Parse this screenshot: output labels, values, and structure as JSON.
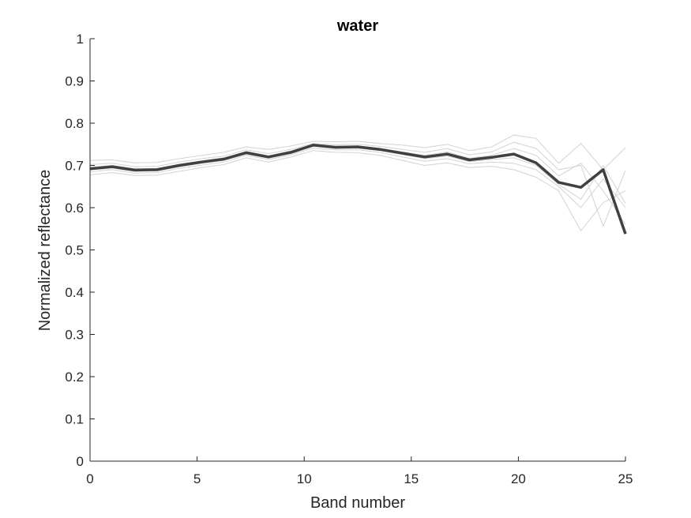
{
  "chart_data": {
    "type": "line",
    "title": "water",
    "xlabel": "Band number",
    "ylabel": "Normalized reflectance",
    "xlim": [
      0,
      25
    ],
    "ylim": [
      0,
      1
    ],
    "xticks": [
      "0",
      "5",
      "10",
      "15",
      "20",
      "25"
    ],
    "yticks": [
      "0",
      "0.1",
      "0.2",
      "0.3",
      "0.4",
      "0.5",
      "0.6",
      "0.7",
      "0.8",
      "0.9",
      "1"
    ],
    "grid": false,
    "legend": "none",
    "colors": {
      "mean": "#404040",
      "samples": "#d3d3d3",
      "axis": "#262626"
    },
    "series": [
      {
        "role": "mean",
        "x": [
          0,
          1.04,
          2.08,
          3.13,
          4.17,
          5.21,
          6.25,
          7.29,
          8.33,
          9.38,
          10.42,
          11.46,
          12.5,
          13.54,
          14.58,
          15.63,
          16.67,
          17.71,
          18.75,
          19.79,
          20.83,
          21.88,
          22.92,
          23.96,
          25
        ],
        "y": [
          0.692,
          0.697,
          0.689,
          0.69,
          0.7,
          0.708,
          0.715,
          0.73,
          0.72,
          0.731,
          0.748,
          0.743,
          0.744,
          0.738,
          0.729,
          0.72,
          0.727,
          0.713,
          0.719,
          0.727,
          0.706,
          0.66,
          0.648,
          0.69,
          0.538
        ]
      },
      {
        "role": "sample",
        "x": [
          0,
          1.04,
          2.08,
          3.13,
          4.17,
          5.21,
          6.25,
          7.29,
          8.33,
          9.38,
          10.42,
          11.46,
          12.5,
          13.54,
          14.58,
          15.63,
          16.67,
          17.71,
          18.75,
          19.79,
          20.83,
          21.88,
          22.92,
          23.96,
          25
        ],
        "y": [
          0.712,
          0.713,
          0.706,
          0.707,
          0.716,
          0.724,
          0.731,
          0.744,
          0.738,
          0.746,
          0.757,
          0.756,
          0.757,
          0.752,
          0.748,
          0.742,
          0.75,
          0.735,
          0.744,
          0.772,
          0.764,
          0.705,
          0.752,
          0.69,
          0.742
        ]
      },
      {
        "role": "sample",
        "x": [
          0,
          1.04,
          2.08,
          3.13,
          4.17,
          5.21,
          6.25,
          7.29,
          8.33,
          9.38,
          10.42,
          11.46,
          12.5,
          13.54,
          14.58,
          15.63,
          16.67,
          17.71,
          18.75,
          19.79,
          20.83,
          21.88,
          22.92,
          23.96,
          25
        ],
        "y": [
          0.678,
          0.683,
          0.676,
          0.677,
          0.686,
          0.695,
          0.702,
          0.718,
          0.708,
          0.72,
          0.735,
          0.731,
          0.73,
          0.724,
          0.712,
          0.7,
          0.706,
          0.695,
          0.698,
          0.69,
          0.672,
          0.64,
          0.545,
          0.612,
          0.64
        ]
      },
      {
        "role": "sample",
        "x": [
          0,
          1.04,
          2.08,
          3.13,
          4.17,
          5.21,
          6.25,
          7.29,
          8.33,
          9.38,
          10.42,
          11.46,
          12.5,
          13.54,
          14.58,
          15.63,
          16.67,
          17.71,
          18.75,
          19.79,
          20.83,
          21.88,
          22.92,
          23.96,
          25
        ],
        "y": [
          0.702,
          0.705,
          0.697,
          0.698,
          0.708,
          0.716,
          0.722,
          0.737,
          0.728,
          0.738,
          0.752,
          0.749,
          0.75,
          0.745,
          0.738,
          0.731,
          0.74,
          0.725,
          0.732,
          0.755,
          0.74,
          0.69,
          0.7,
          0.556,
          0.688
        ]
      },
      {
        "role": "sample",
        "x": [
          0,
          1.04,
          2.08,
          3.13,
          4.17,
          5.21,
          6.25,
          7.29,
          8.33,
          9.38,
          10.42,
          11.46,
          12.5,
          13.54,
          14.58,
          15.63,
          16.67,
          17.71,
          18.75,
          19.79,
          20.83,
          21.88,
          22.92,
          23.96,
          25
        ],
        "y": [
          0.685,
          0.69,
          0.682,
          0.683,
          0.693,
          0.701,
          0.708,
          0.724,
          0.714,
          0.725,
          0.741,
          0.737,
          0.737,
          0.731,
          0.72,
          0.71,
          0.716,
          0.704,
          0.708,
          0.705,
          0.69,
          0.65,
          0.6,
          0.668,
          0.6
        ]
      },
      {
        "role": "sample",
        "x": [
          0,
          1.04,
          2.08,
          3.13,
          4.17,
          5.21,
          6.25,
          7.29,
          8.33,
          9.38,
          10.42,
          11.46,
          12.5,
          13.54,
          14.58,
          15.63,
          16.67,
          17.71,
          18.75,
          19.79,
          20.83,
          21.88,
          22.92,
          23.96,
          25
        ],
        "y": [
          0.696,
          0.7,
          0.692,
          0.693,
          0.703,
          0.711,
          0.718,
          0.733,
          0.723,
          0.734,
          0.75,
          0.745,
          0.746,
          0.74,
          0.732,
          0.724,
          0.732,
          0.717,
          0.724,
          0.74,
          0.724,
          0.675,
          0.705,
          0.64,
          0.56
        ]
      },
      {
        "role": "sample",
        "x": [
          0,
          1.04,
          2.08,
          3.13,
          4.17,
          5.21,
          6.25,
          7.29,
          8.33,
          9.38,
          10.42,
          11.46,
          12.5,
          13.54,
          14.58,
          15.63,
          16.67,
          17.71,
          18.75,
          19.79,
          20.83,
          21.88,
          22.92,
          23.96,
          25
        ],
        "y": [
          0.69,
          0.694,
          0.686,
          0.687,
          0.697,
          0.705,
          0.712,
          0.727,
          0.717,
          0.728,
          0.745,
          0.74,
          0.741,
          0.735,
          0.726,
          0.716,
          0.722,
          0.709,
          0.714,
          0.718,
          0.7,
          0.655,
          0.62,
          0.7,
          0.61
        ]
      }
    ]
  }
}
